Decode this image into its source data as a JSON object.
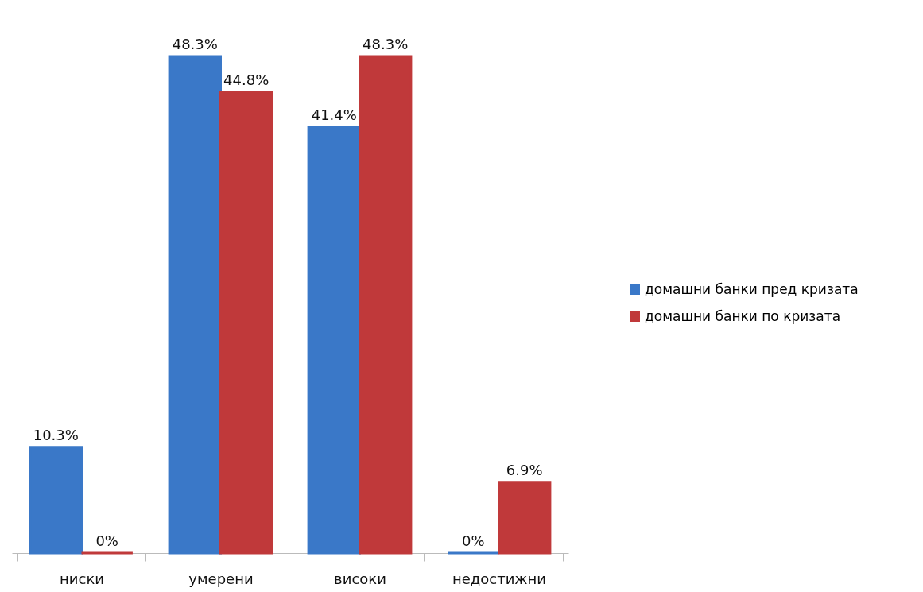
{
  "chart_data": {
    "type": "bar",
    "categories": [
      "ниски",
      "умерени",
      "високи",
      "недостижни"
    ],
    "series": [
      {
        "name": "домашни банки пред кризата",
        "color": "#3a78c8",
        "values": [
          10.3,
          48.3,
          41.4,
          0
        ],
        "value_labels": [
          "10.3%",
          "48.3%",
          "41.4%",
          "0%"
        ]
      },
      {
        "name": "домашни банки по кризата",
        "color": "#c0393a",
        "values": [
          0,
          44.8,
          48.3,
          6.9
        ],
        "value_labels": [
          "0%",
          "44.8%",
          "48.3%",
          "6.9%"
        ]
      }
    ],
    "legend": "right",
    "grid": false
  }
}
